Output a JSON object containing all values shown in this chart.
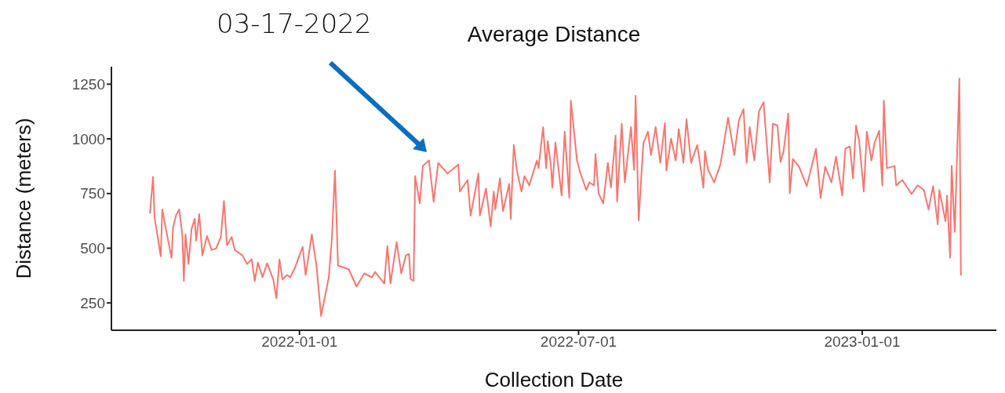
{
  "chart_data": {
    "type": "line",
    "title": "Average Distance",
    "xlabel": "Collection Date",
    "ylabel": "Distance (meters)",
    "annotations": [
      "03-17-2022"
    ],
    "xlim": [
      "2021-09-01",
      "2023-03-29"
    ],
    "xticks": [
      "2022-01-01",
      "2022-07-01",
      "2023-01-01"
    ],
    "ylim": [
      125,
      1330
    ],
    "yticks": [
      250,
      500,
      750,
      1000,
      1250
    ],
    "grid": false,
    "legend": false,
    "x": [
      "2021-09-26",
      "2021-09-28",
      "2021-09-29",
      "2021-10-03",
      "2021-10-04",
      "2021-10-07",
      "2021-10-10",
      "2021-10-11",
      "2021-10-13",
      "2021-10-15",
      "2021-10-17",
      "2021-10-18",
      "2021-10-19",
      "2021-10-21",
      "2021-10-23",
      "2021-10-25",
      "2021-10-26",
      "2021-10-28",
      "2021-10-30",
      "2021-11-02",
      "2021-11-05",
      "2021-11-08",
      "2021-11-11",
      "2021-11-13",
      "2021-11-15",
      "2021-11-18",
      "2021-11-20",
      "2021-11-25",
      "2021-11-28",
      "2021-12-01",
      "2021-12-03",
      "2021-12-05",
      "2021-12-08",
      "2021-12-11",
      "2021-12-15",
      "2021-12-17",
      "2021-12-19",
      "2021-12-21",
      "2021-12-24",
      "2021-12-26",
      "2021-12-29",
      "2022-01-03",
      "2022-01-05",
      "2022-01-09",
      "2022-01-12",
      "2022-01-15",
      "2022-01-20",
      "2022-01-22",
      "2022-01-24",
      "2022-01-26",
      "2022-02-02",
      "2022-02-07",
      "2022-02-12",
      "2022-02-17",
      "2022-02-19",
      "2022-02-25",
      "2022-02-27",
      "2022-03-01",
      "2022-03-05",
      "2022-03-08",
      "2022-03-11",
      "2022-03-13",
      "2022-03-14",
      "2022-03-16",
      "2022-03-17",
      "2022-03-20",
      "2022-03-22",
      "2022-03-26",
      "2022-03-29",
      "2022-04-01",
      "2022-04-07",
      "2022-04-14",
      "2022-04-15",
      "2022-04-20",
      "2022-04-22",
      "2022-04-27",
      "2022-04-28",
      "2022-05-02",
      "2022-05-05",
      "2022-05-07",
      "2022-05-08",
      "2022-05-11",
      "2022-05-13",
      "2022-05-17",
      "2022-05-18",
      "2022-05-20",
      "2022-05-22",
      "2022-05-25",
      "2022-05-27",
      "2022-05-30",
      "2022-06-04",
      "2022-06-05",
      "2022-06-08",
      "2022-06-10",
      "2022-06-11",
      "2022-06-13",
      "2022-06-14",
      "2022-06-16",
      "2022-06-20",
      "2022-06-22",
      "2022-06-25",
      "2022-06-26",
      "2022-06-30",
      "2022-07-02",
      "2022-07-06",
      "2022-07-08",
      "2022-07-11",
      "2022-07-12",
      "2022-07-14",
      "2022-07-17",
      "2022-07-20",
      "2022-07-22",
      "2022-07-25",
      "2022-07-26",
      "2022-07-29",
      "2022-07-31",
      "2022-08-04",
      "2022-08-06",
      "2022-08-07",
      "2022-08-09",
      "2022-08-12",
      "2022-08-15",
      "2022-08-17",
      "2022-08-20",
      "2022-08-23",
      "2022-08-26",
      "2022-08-27",
      "2022-08-30",
      "2022-09-02",
      "2022-09-04",
      "2022-09-07",
      "2022-09-09",
      "2022-09-12",
      "2022-09-16",
      "2022-09-20",
      "2022-09-21",
      "2022-09-23",
      "2022-09-27",
      "2022-10-01",
      "2022-10-06",
      "2022-10-10",
      "2022-10-13",
      "2022-10-16",
      "2022-10-18",
      "2022-10-20",
      "2022-10-23",
      "2022-10-26",
      "2022-10-29",
      "2022-11-02",
      "2022-11-04",
      "2022-11-07",
      "2022-11-09",
      "2022-11-11",
      "2022-11-14",
      "2022-11-15",
      "2022-11-17",
      "2022-11-21",
      "2022-11-26",
      "2022-12-02",
      "2022-12-05",
      "2022-12-08",
      "2022-12-12",
      "2022-12-15",
      "2022-12-19",
      "2022-12-21",
      "2022-12-24",
      "2022-12-26",
      "2022-12-28",
      "2022-12-30",
      "2023-01-02",
      "2023-01-04",
      "2023-01-07",
      "2023-01-09",
      "2023-01-12",
      "2023-01-14",
      "2023-01-15",
      "2023-01-17",
      "2023-01-22",
      "2023-01-23",
      "2023-01-27",
      "2023-02-02",
      "2023-02-06",
      "2023-02-10",
      "2023-02-13",
      "2023-02-16",
      "2023-02-19",
      "2023-02-20",
      "2023-02-24",
      "2023-02-25",
      "2023-02-27",
      "2023-02-28",
      "2023-03-02",
      "2023-03-05",
      "2023-03-06"
    ],
    "series": [
      {
        "color": "#f8766d",
        "values": [
          659,
          826,
          641,
          463,
          677,
          563,
          456,
          595,
          652,
          677,
          563,
          350,
          563,
          428,
          588,
          634,
          535,
          656,
          467,
          556,
          492,
          499,
          552,
          716,
          513,
          552,
          492,
          467,
          428,
          449,
          350,
          435,
          367,
          431,
          357,
          271,
          449,
          357,
          378,
          367,
          410,
          506,
          378,
          563,
          421,
          190,
          367,
          545,
          855,
          421,
          403,
          325,
          385,
          367,
          392,
          339,
          510,
          339,
          528,
          385,
          467,
          474,
          360,
          350,
          830,
          705,
          876,
          901,
          713,
          890,
          841,
          883,
          759,
          812,
          649,
          841,
          649,
          773,
          599,
          759,
          677,
          819,
          670,
          794,
          634,
          972,
          855,
          759,
          830,
          787,
          901,
          866,
          1054,
          866,
          990,
          883,
          777,
          983,
          741,
          1033,
          730,
          1175,
          901,
          848,
          766,
          801,
          787,
          930,
          751,
          705,
          890,
          777,
          1015,
          713,
          1069,
          801,
          1054,
          858,
          1197,
          627,
          980,
          1033,
          926,
          1054,
          890,
          1072,
          855,
          1001,
          901,
          1044,
          890,
          1090,
          890,
          972,
          777,
          944,
          858,
          801,
          883,
          1097,
          926,
          1086,
          1136,
          890,
          1054,
          901,
          1125,
          1168,
          801,
          1069,
          1061,
          894,
          944,
          1115,
          751,
          908,
          873,
          784,
          955,
          730,
          873,
          801,
          919,
          741,
          955,
          965,
          819,
          1061,
          990,
          759,
          1033,
          901,
          983,
          1037,
          787,
          1175,
          866,
          876,
          787,
          812,
          748,
          787,
          766,
          677,
          784,
          609,
          766,
          623,
          741,
          456,
          876,
          574,
          1275,
          375
        ]
      }
    ]
  }
}
